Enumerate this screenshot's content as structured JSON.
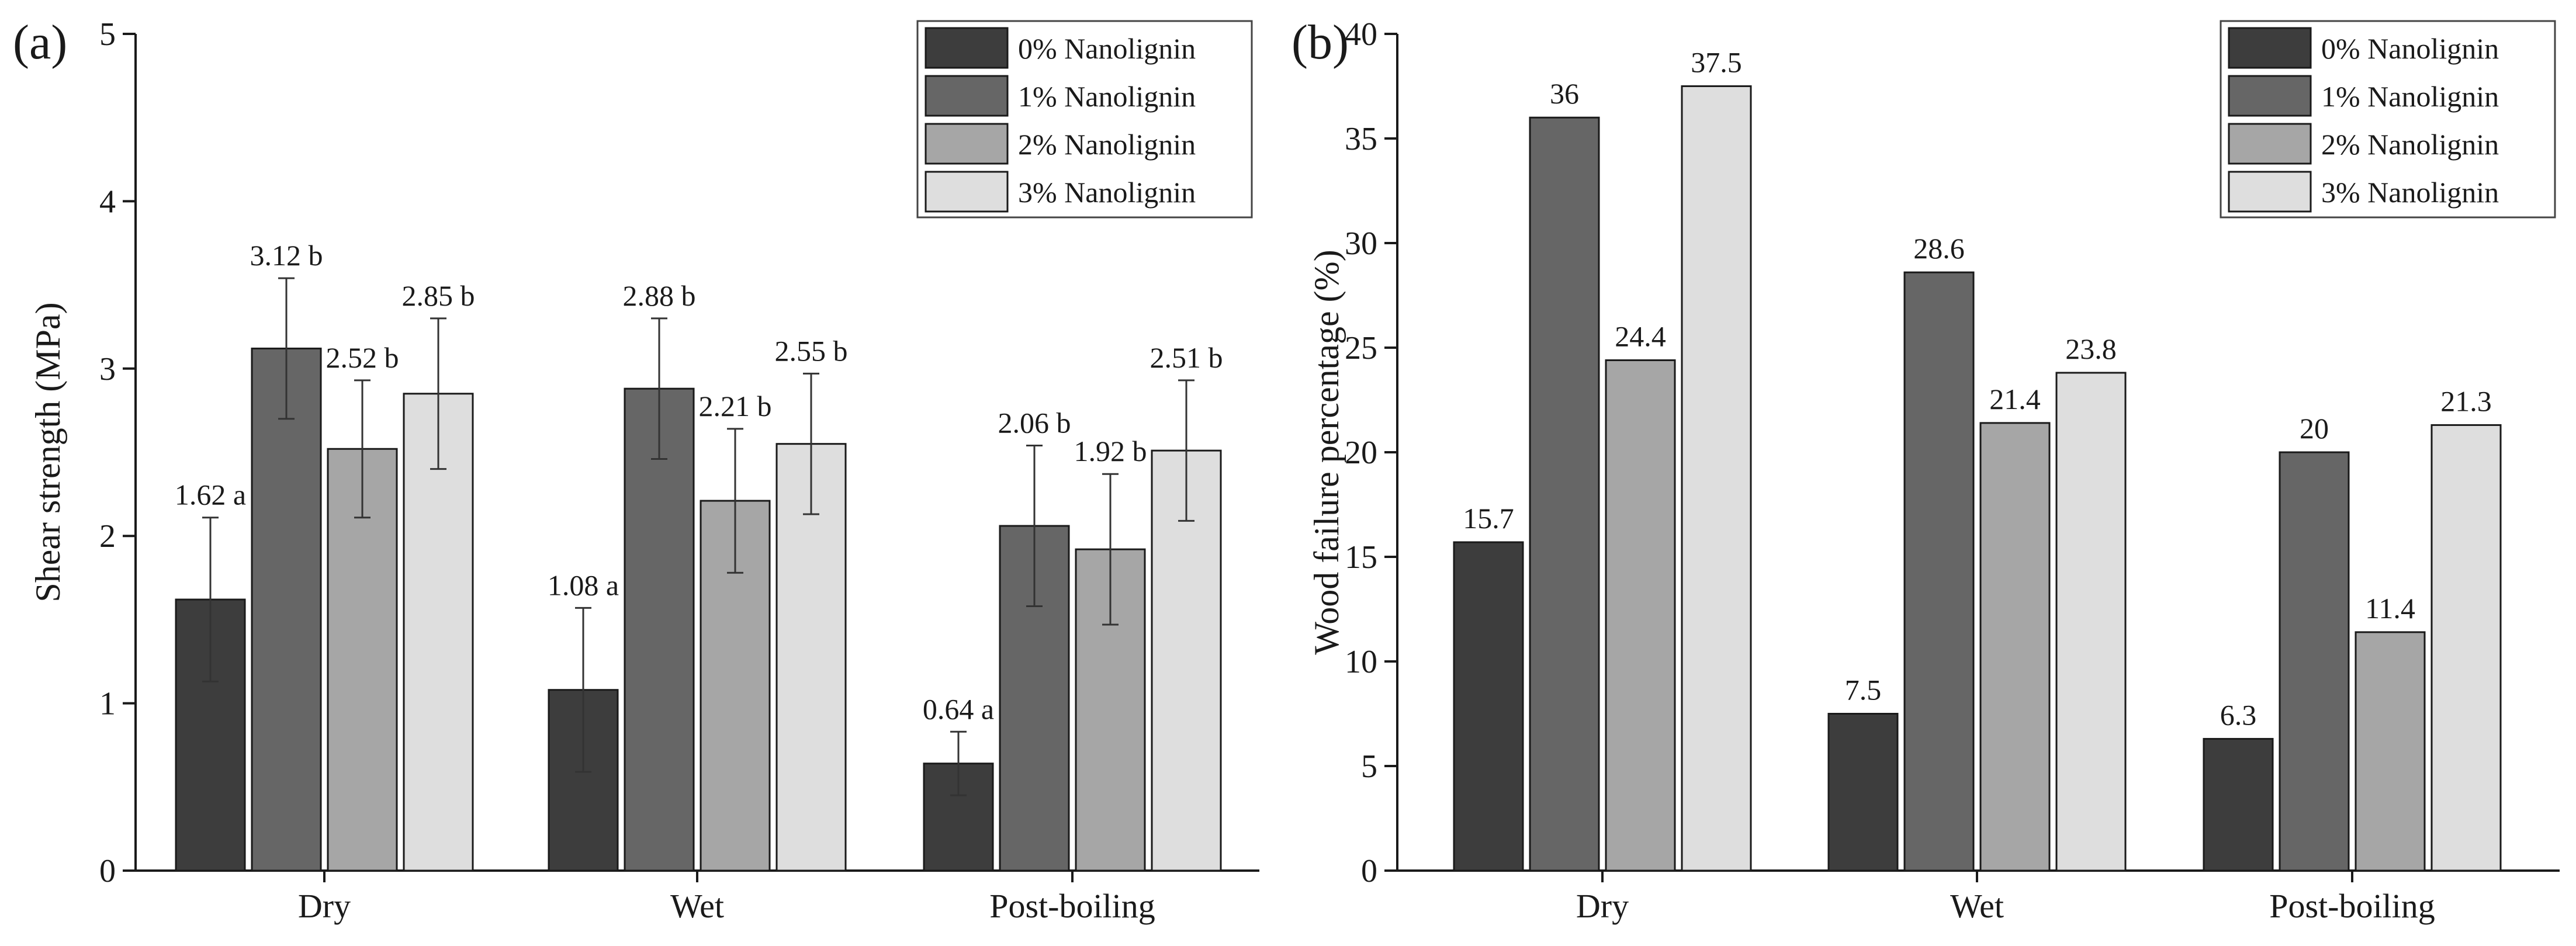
{
  "chart_data": [
    {
      "panel": "(a)",
      "type": "bar",
      "ylabel": "Shear strength (MPa)",
      "xlabel": "",
      "ylim": [
        0,
        5
      ],
      "yticks": [
        0,
        1,
        2,
        3,
        4,
        5
      ],
      "categories": [
        "Dry",
        "Wet",
        "Post-boiling"
      ],
      "colors": [
        "#3d3d3d",
        "#666666",
        "#a6a6a6",
        "#dedede"
      ],
      "legend_position": "top-right",
      "series": [
        {
          "name": "0% Nanolignin",
          "values": [
            1.62,
            1.08,
            0.64
          ],
          "errors": [
            0.49,
            0.49,
            0.19
          ],
          "labels": [
            "1.62 a",
            "1.08 a",
            "0.64 a"
          ]
        },
        {
          "name": "1% Nanolignin",
          "values": [
            3.12,
            2.88,
            2.06
          ],
          "errors": [
            0.42,
            0.42,
            0.48
          ],
          "labels": [
            "3.12 b",
            "2.88 b",
            "2.06 b"
          ]
        },
        {
          "name": "2% Nanolignin",
          "values": [
            2.52,
            2.21,
            1.92
          ],
          "errors": [
            0.41,
            0.43,
            0.45
          ],
          "labels": [
            "2.52 b",
            "2.21 b",
            "1.92 b"
          ]
        },
        {
          "name": "3% Nanolignin",
          "values": [
            2.85,
            2.55,
            2.51
          ],
          "errors": [
            0.45,
            0.42,
            0.42
          ],
          "labels": [
            "2.85 b",
            "2.55 b",
            "2.51 b"
          ]
        }
      ]
    },
    {
      "panel": "(b)",
      "type": "bar",
      "ylabel": "Wood failure percentage (%)",
      "xlabel": "",
      "ylim": [
        0,
        40
      ],
      "yticks": [
        0,
        5,
        10,
        15,
        20,
        25,
        30,
        35,
        40
      ],
      "categories": [
        "Dry",
        "Wet",
        "Post-boiling"
      ],
      "colors": [
        "#3d3d3d",
        "#666666",
        "#a6a6a6",
        "#dedede"
      ],
      "legend_position": "top-right",
      "series": [
        {
          "name": "0% Nanolignin",
          "values": [
            15.7,
            7.5,
            6.3
          ],
          "labels": [
            "15.7",
            "7.5",
            "6.3"
          ]
        },
        {
          "name": "1% Nanolignin",
          "values": [
            36,
            28.6,
            20
          ],
          "labels": [
            "36",
            "28.6",
            "20"
          ]
        },
        {
          "name": "2% Nanolignin",
          "values": [
            24.4,
            21.4,
            11.4
          ],
          "labels": [
            "24.4",
            "21.4",
            "11.4"
          ]
        },
        {
          "name": "3% Nanolignin",
          "values": [
            37.5,
            23.8,
            21.3
          ],
          "labels": [
            "37.5",
            "23.8",
            "21.3"
          ]
        }
      ]
    }
  ]
}
